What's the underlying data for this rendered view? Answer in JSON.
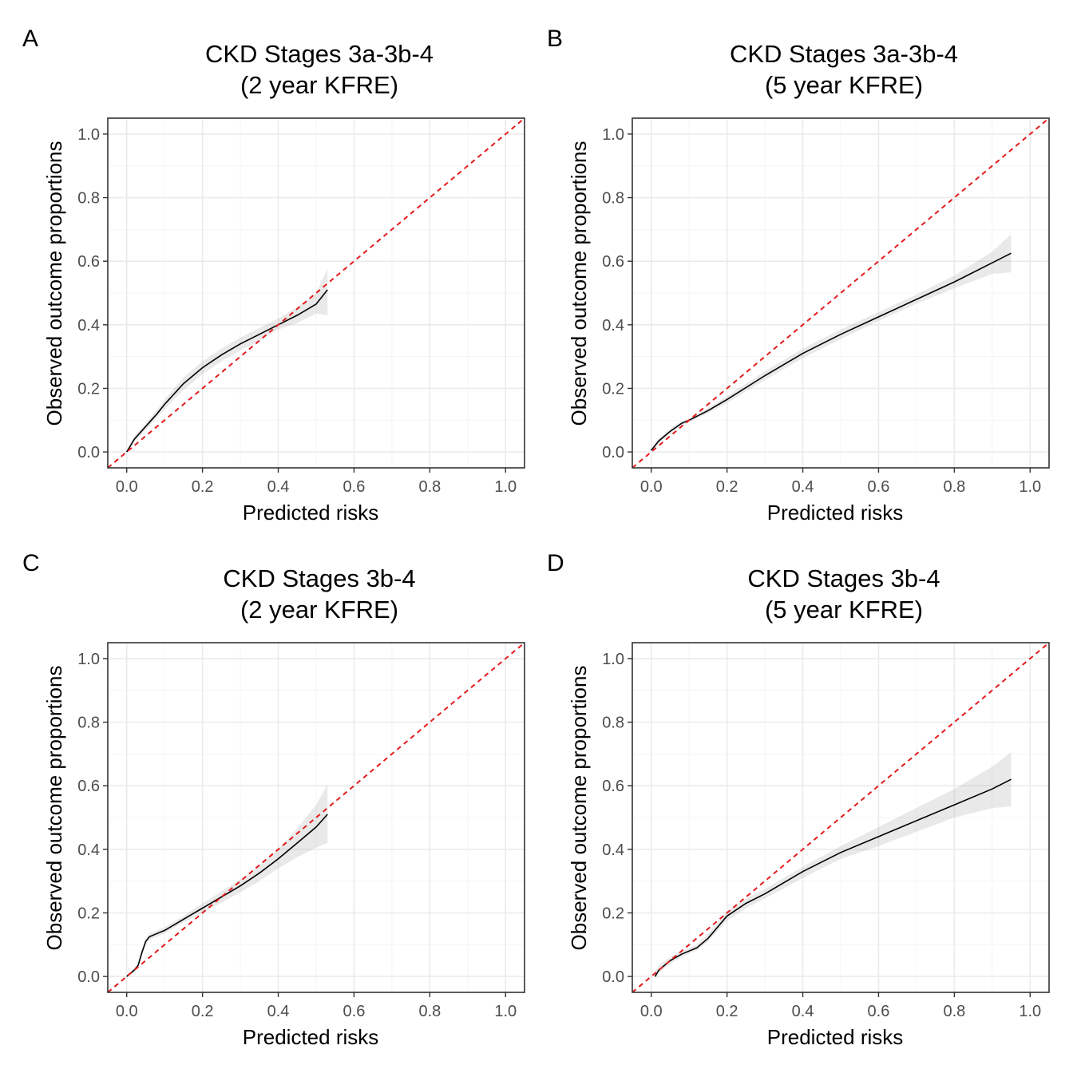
{
  "chart_data": [
    {
      "type": "line",
      "panel_label": "A",
      "title_lines": [
        "CKD Stages 3a-3b-4",
        "(2 year KFRE)"
      ],
      "xlabel": "Predicted risks",
      "ylabel": "Observed outcome proportions",
      "xlim": [
        -0.05,
        1.05
      ],
      "ylim": [
        -0.05,
        1.05
      ],
      "x_ticks": [
        "0.0",
        "0.2",
        "0.4",
        "0.6",
        "0.8",
        "1.0"
      ],
      "y_ticks": [
        "0.0",
        "0.2",
        "0.4",
        "0.6",
        "0.8",
        "1.0"
      ],
      "grid": true,
      "reference_line": {
        "color": "#e31a1c",
        "style": "dashed",
        "from": [
          -0.05,
          -0.05
        ],
        "to": [
          1.05,
          1.05
        ]
      },
      "series": [
        {
          "kind": "smoothed-calibration",
          "x": [
            0.0,
            0.01,
            0.02,
            0.05,
            0.08,
            0.1,
            0.15,
            0.2,
            0.25,
            0.3,
            0.35,
            0.4,
            0.45,
            0.5,
            0.53
          ],
          "y": [
            0.0,
            0.02,
            0.04,
            0.08,
            0.12,
            0.15,
            0.215,
            0.265,
            0.305,
            0.34,
            0.37,
            0.4,
            0.43,
            0.465,
            0.51
          ],
          "lower": [
            0.0,
            0.015,
            0.032,
            0.07,
            0.108,
            0.135,
            0.195,
            0.245,
            0.285,
            0.32,
            0.35,
            0.385,
            0.405,
            0.435,
            0.43
          ],
          "upper": [
            0.005,
            0.027,
            0.05,
            0.09,
            0.132,
            0.165,
            0.235,
            0.285,
            0.325,
            0.36,
            0.39,
            0.42,
            0.455,
            0.5,
            0.575
          ]
        }
      ]
    },
    {
      "type": "line",
      "panel_label": "B",
      "title_lines": [
        "CKD Stages 3a-3b-4",
        "(5 year KFRE)"
      ],
      "xlabel": "Predicted risks",
      "ylabel": "Observed outcome proportions",
      "xlim": [
        -0.05,
        1.05
      ],
      "ylim": [
        -0.05,
        1.05
      ],
      "x_ticks": [
        "0.0",
        "0.2",
        "0.4",
        "0.6",
        "0.8",
        "1.0"
      ],
      "y_ticks": [
        "0.0",
        "0.2",
        "0.4",
        "0.6",
        "0.8",
        "1.0"
      ],
      "grid": true,
      "reference_line": {
        "color": "#e31a1c",
        "style": "dashed",
        "from": [
          -0.05,
          -0.05
        ],
        "to": [
          1.05,
          1.05
        ]
      },
      "series": [
        {
          "kind": "smoothed-calibration",
          "x": [
            0.0,
            0.01,
            0.02,
            0.05,
            0.08,
            0.1,
            0.15,
            0.2,
            0.3,
            0.4,
            0.5,
            0.6,
            0.7,
            0.8,
            0.9,
            0.95
          ],
          "y": [
            0.005,
            0.02,
            0.035,
            0.065,
            0.09,
            0.1,
            0.13,
            0.165,
            0.24,
            0.31,
            0.37,
            0.425,
            0.48,
            0.535,
            0.595,
            0.625
          ],
          "lower": [
            0.0,
            0.013,
            0.028,
            0.057,
            0.083,
            0.094,
            0.122,
            0.154,
            0.226,
            0.295,
            0.355,
            0.412,
            0.466,
            0.515,
            0.56,
            0.565
          ],
          "upper": [
            0.012,
            0.027,
            0.042,
            0.073,
            0.097,
            0.106,
            0.138,
            0.176,
            0.254,
            0.325,
            0.385,
            0.44,
            0.495,
            0.555,
            0.63,
            0.685
          ]
        }
      ]
    },
    {
      "type": "line",
      "panel_label": "C",
      "title_lines": [
        "CKD Stages 3b-4",
        "(2 year KFRE)"
      ],
      "xlabel": "Predicted risks",
      "ylabel": "Observed outcome proportions",
      "xlim": [
        -0.05,
        1.05
      ],
      "ylim": [
        -0.05,
        1.05
      ],
      "x_ticks": [
        "0.0",
        "0.2",
        "0.4",
        "0.6",
        "0.8",
        "1.0"
      ],
      "y_ticks": [
        "0.0",
        "0.2",
        "0.4",
        "0.6",
        "0.8",
        "1.0"
      ],
      "grid": true,
      "reference_line": {
        "color": "#e31a1c",
        "style": "dashed",
        "from": [
          -0.05,
          -0.05
        ],
        "to": [
          1.05,
          1.05
        ]
      },
      "series": [
        {
          "kind": "smoothed-calibration",
          "x": [
            0.0,
            0.01,
            0.02,
            0.03,
            0.04,
            0.05,
            0.06,
            0.08,
            0.1,
            0.15,
            0.2,
            0.25,
            0.3,
            0.35,
            0.4,
            0.45,
            0.5,
            0.53
          ],
          "y": [
            0.0,
            0.01,
            0.02,
            0.035,
            0.075,
            0.11,
            0.125,
            0.135,
            0.145,
            0.18,
            0.215,
            0.25,
            0.285,
            0.325,
            0.37,
            0.42,
            0.47,
            0.51
          ],
          "lower": [
            0.0,
            0.005,
            0.015,
            0.028,
            0.065,
            0.1,
            0.115,
            0.125,
            0.135,
            0.17,
            0.2,
            0.232,
            0.265,
            0.3,
            0.34,
            0.375,
            0.405,
            0.42
          ],
          "upper": [
            0.005,
            0.015,
            0.026,
            0.042,
            0.085,
            0.12,
            0.135,
            0.145,
            0.155,
            0.19,
            0.23,
            0.268,
            0.305,
            0.35,
            0.4,
            0.465,
            0.54,
            0.605
          ]
        }
      ]
    },
    {
      "type": "line",
      "panel_label": "D",
      "title_lines": [
        "CKD Stages 3b-4",
        "(5 year KFRE)"
      ],
      "xlabel": "Predicted risks",
      "ylabel": "Observed outcome proportions",
      "xlim": [
        -0.05,
        1.05
      ],
      "ylim": [
        -0.05,
        1.05
      ],
      "x_ticks": [
        "0.0",
        "0.2",
        "0.4",
        "0.6",
        "0.8",
        "1.0"
      ],
      "y_ticks": [
        "0.0",
        "0.2",
        "0.4",
        "0.6",
        "0.8",
        "1.0"
      ],
      "grid": true,
      "reference_line": {
        "color": "#e31a1c",
        "style": "dashed",
        "from": [
          -0.05,
          -0.05
        ],
        "to": [
          1.05,
          1.05
        ]
      },
      "series": [
        {
          "kind": "smoothed-calibration",
          "x": [
            0.01,
            0.02,
            0.03,
            0.05,
            0.08,
            0.1,
            0.12,
            0.15,
            0.2,
            0.25,
            0.3,
            0.4,
            0.5,
            0.6,
            0.7,
            0.8,
            0.9,
            0.95
          ],
          "y": [
            0.0,
            0.02,
            0.03,
            0.05,
            0.07,
            0.08,
            0.09,
            0.12,
            0.19,
            0.23,
            0.26,
            0.33,
            0.39,
            0.44,
            0.49,
            0.54,
            0.59,
            0.62
          ],
          "lower": [
            -0.01,
            0.01,
            0.02,
            0.04,
            0.06,
            0.072,
            0.082,
            0.11,
            0.175,
            0.215,
            0.245,
            0.31,
            0.37,
            0.41,
            0.455,
            0.5,
            0.53,
            0.535
          ],
          "upper": [
            0.015,
            0.035,
            0.045,
            0.06,
            0.08,
            0.09,
            0.1,
            0.135,
            0.205,
            0.245,
            0.275,
            0.345,
            0.41,
            0.47,
            0.53,
            0.59,
            0.66,
            0.705
          ]
        }
      ]
    }
  ]
}
